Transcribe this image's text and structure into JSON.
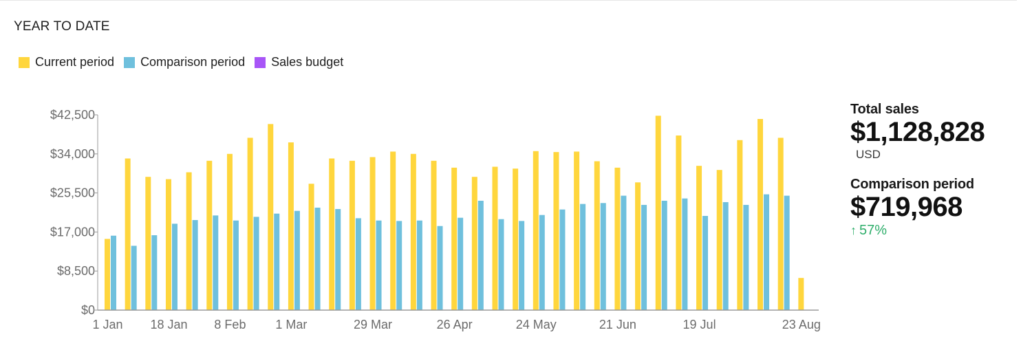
{
  "card": {
    "title": "YEAR TO DATE"
  },
  "legend": [
    {
      "label": "Current period",
      "color": "#FFD63D"
    },
    {
      "label": "Comparison period",
      "color": "#6FC0DD"
    },
    {
      "label": "Sales budget",
      "color": "#A855F7"
    }
  ],
  "summary": {
    "total_label": "Total sales",
    "total_value": "$1,128,828",
    "currency": "USD",
    "comparison_label": "Comparison period",
    "comparison_value": "$719,968",
    "change_icon": "arrow-up-icon",
    "change_value": "57%",
    "change_color": "#2FAE6B"
  },
  "chart_data": {
    "type": "bar",
    "title": "",
    "xlabel": "",
    "ylabel": "",
    "ylim": [
      0,
      42500
    ],
    "yticks": [
      0,
      8500,
      17000,
      25500,
      34000,
      42500
    ],
    "ytick_labels": [
      "$0",
      "$8,500",
      "$17,000",
      "$25,500",
      "$34,000",
      "$42,500"
    ],
    "xtick_labels": [
      {
        "label": "1 Jan",
        "index": 0
      },
      {
        "label": "18 Jan",
        "index": 3
      },
      {
        "label": "8 Feb",
        "index": 6
      },
      {
        "label": "1 Mar",
        "index": 9
      },
      {
        "label": "29 Mar",
        "index": 13
      },
      {
        "label": "26 Apr",
        "index": 17
      },
      {
        "label": "24 May",
        "index": 21
      },
      {
        "label": "21 Jun",
        "index": 25
      },
      {
        "label": "19 Jul",
        "index": 29
      },
      {
        "label": "23 Aug",
        "index": 34
      }
    ],
    "series": [
      {
        "name": "Current period",
        "color": "#FFD63D",
        "values": [
          15500,
          33000,
          29000,
          28500,
          30000,
          32500,
          34000,
          37500,
          40500,
          36500,
          27500,
          33000,
          32500,
          33300,
          34500,
          34000,
          32500,
          31000,
          29000,
          31200,
          30800,
          34600,
          34400,
          34500,
          32400,
          31000,
          27800,
          42300,
          38000,
          31400,
          30500,
          37000,
          41600,
          37500,
          7000
        ]
      },
      {
        "name": "Comparison period",
        "color": "#6FC0DD",
        "values": [
          16200,
          14000,
          16300,
          18800,
          19600,
          20600,
          19500,
          20300,
          21000,
          21600,
          22300,
          22000,
          20000,
          19500,
          19400,
          19500,
          18300,
          20100,
          23800,
          19800,
          19400,
          20700,
          21900,
          23100,
          23300,
          24900,
          22900,
          23800,
          24300,
          20500,
          23500,
          22900,
          25200,
          24900,
          null
        ]
      }
    ]
  }
}
